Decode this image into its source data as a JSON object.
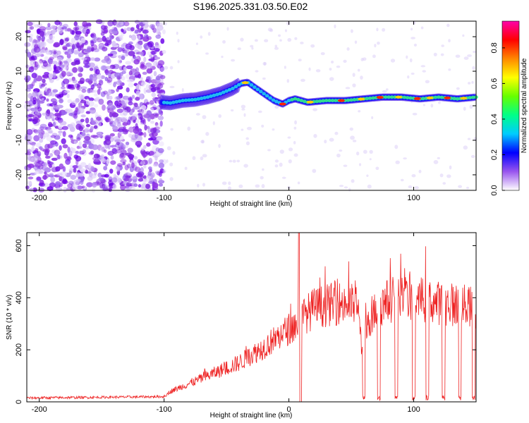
{
  "title": "S196.2025.331.03.50.E02",
  "chart_data": [
    {
      "type": "heatmap",
      "name": "spectrogram",
      "xlabel": "Height of straight line (km)",
      "ylabel": "Frequency (Hz)",
      "xlim": [
        -210,
        150
      ],
      "ylim": [
        -24.5,
        24.5
      ],
      "xticks": [
        -200,
        -100,
        0,
        100
      ],
      "yticks": [
        -20,
        -10,
        0,
        10,
        20
      ],
      "colorbar": {
        "label": "Normalized spectral amplitude",
        "range": [
          0.0,
          0.95
        ],
        "ticks": [
          0.0,
          0.2,
          0.4,
          0.6,
          0.8
        ],
        "colormap": [
          "#ffffff",
          "#9955ee",
          "#0000ff",
          "#00ccff",
          "#00ff88",
          "#66ff00",
          "#ffff00",
          "#ff8800",
          "#ff0000",
          "#ff00aa"
        ]
      },
      "ridge": {
        "description": "dominant frequency ridge vs height",
        "x": [
          -102,
          -95,
          -85,
          -75,
          -65,
          -55,
          -45,
          -38,
          -33,
          -28,
          -20,
          -12,
          -5,
          0,
          5,
          15,
          30,
          45,
          60,
          75,
          90,
          105,
          120,
          135,
          150
        ],
        "frequency_hz": [
          1.0,
          0.8,
          1.5,
          1.8,
          2.5,
          3.5,
          5.0,
          6.5,
          6.8,
          5.5,
          3.5,
          1.5,
          0.5,
          1.5,
          2.0,
          1.0,
          1.5,
          1.5,
          2.0,
          2.5,
          2.5,
          2.0,
          2.5,
          2.0,
          2.5
        ]
      }
    },
    {
      "type": "line",
      "name": "snr",
      "xlabel": "Height of straight line (km)",
      "ylabel": "SNR (10 * v/v)",
      "xlim": [
        -210,
        150
      ],
      "ylim": [
        0,
        650
      ],
      "xticks": [
        -200,
        -100,
        0,
        100
      ],
      "yticks": [
        0,
        200,
        400,
        600
      ],
      "color": "#ee2222",
      "envelope": {
        "x": [
          -210,
          -100,
          -95,
          -80,
          -60,
          -40,
          -20,
          0,
          8,
          12,
          20,
          40,
          55,
          58,
          60,
          70,
          80,
          100,
          120,
          140,
          150
        ],
        "y": [
          15,
          20,
          40,
          70,
          110,
          150,
          210,
          280,
          300,
          330,
          360,
          380,
          370,
          230,
          250,
          360,
          390,
          400,
          380,
          370,
          360
        ]
      },
      "spike": {
        "x": 8,
        "y": 650
      },
      "dropouts_x": [
        60,
        72,
        86,
        100,
        111,
        124,
        137,
        148
      ]
    }
  ]
}
